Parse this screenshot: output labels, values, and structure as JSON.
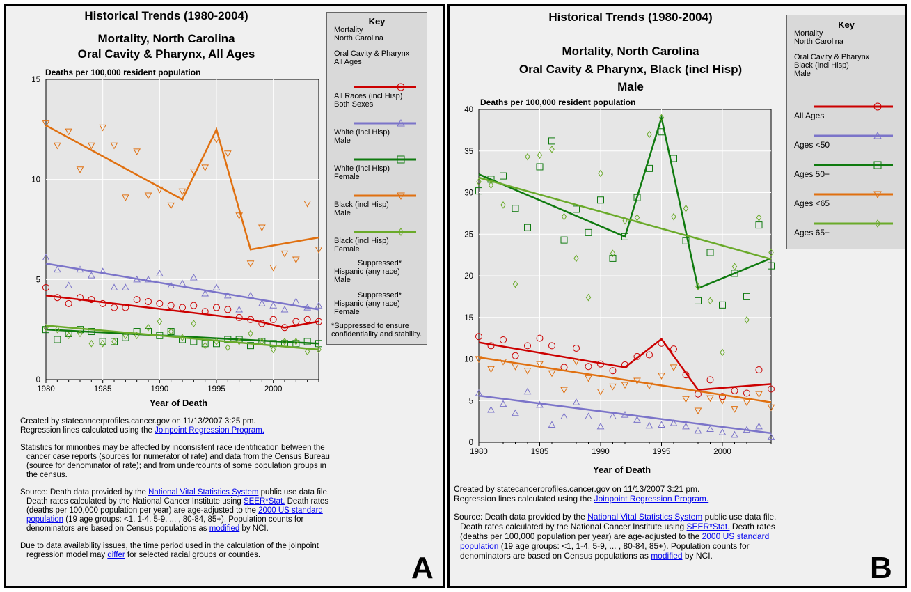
{
  "panel_a": {
    "title": "Historical Trends (1980-2004)",
    "subtitle1": "Mortality, North Carolina",
    "subtitle2": "Oral Cavity & Pharynx, All Ages",
    "ylabel": "Deaths per 100,000 resident population",
    "xlabel": "Year of Death",
    "key": {
      "title": "Key",
      "header1": "Mortality",
      "header2": "North Carolina",
      "header3": "Oral Cavity & Pharynx",
      "header4": "All Ages",
      "items": [
        {
          "l1": "All Races (incl Hisp)",
          "l2": "Both Sexes",
          "color": "#cc0000",
          "marker": "circle"
        },
        {
          "l1": "White (incl Hisp)",
          "l2": "Male",
          "color": "#7b74c9",
          "marker": "triangle-up"
        },
        {
          "l1": "White (incl Hisp)",
          "l2": "Female",
          "color": "#0f7a0f",
          "marker": "square"
        },
        {
          "l1": "Black (incl Hisp)",
          "l2": "Male",
          "color": "#e07010",
          "marker": "triangle-down"
        },
        {
          "l1": "Black (incl Hisp)",
          "l2": "Female",
          "color": "#6aaa2a",
          "marker": "diamond"
        }
      ],
      "suppressed": [
        {
          "l0": "Suppressed*",
          "l1": "Hispanic (any race)",
          "l2": "Male"
        },
        {
          "l0": "Suppressed*",
          "l1": "Hispanic (any race)",
          "l2": "Female"
        }
      ],
      "footnote": "*Suppressed to ensure confidentiality and stability."
    },
    "created": "Created by statecancerprofiles.cancer.gov on 11/13/2007 3:25 pm.",
    "regression_pre": "Regression lines calculated using the ",
    "regression_link": "Joinpoint Regression Program.",
    "minorities": "Statistics for minorities may be affected by inconsistent race identification between the cancer case reports (sources for numerator of rate) and data from the Census Bureau (source for denominator of rate); and from undercounts of some population groups in the census.",
    "source": {
      "s1": "Source: Death data provided by the ",
      "l1": "National Vital Statistics System",
      "s2": " public use data file. Death rates calculated by the National Cancer Institute using ",
      "l2": "SEER*Stat.",
      "s3": " Death rates (deaths per 100,000 population per year) are age-adjusted to the ",
      "l3": "2000 US standard population",
      "s4": " (19 age groups: <1, 1-4, 5-9, ... , 80-84, 85+). Population counts for denominators are based on Census populations as ",
      "l4": "modified",
      "s5": " by NCI."
    },
    "availability_pre": "Due to data availability issues, the time period used in the calculation of the joinpoint regression model may ",
    "availability_link": "differ",
    "availability_post": " for selected racial groups or counties.",
    "panel_letter": "A"
  },
  "panel_b": {
    "title": "Historical Trends (1980-2004)",
    "subtitle1": "Mortality, North Carolina",
    "subtitle2": "Oral Cavity & Pharynx, Black (incl Hisp)",
    "subtitle3": "Male",
    "ylabel": "Deaths per 100,000 resident population",
    "xlabel": "Year of Death",
    "key": {
      "title": "Key",
      "header1": "Mortality",
      "header2": "North Carolina",
      "header3": "Oral Cavity & Pharynx",
      "header4": "Black (incl Hisp)",
      "header5": "Male",
      "items": [
        {
          "label": "All Ages",
          "color": "#cc0000",
          "marker": "circle"
        },
        {
          "label": "Ages <50",
          "color": "#7b74c9",
          "marker": "triangle-up"
        },
        {
          "label": "Ages 50+",
          "color": "#0f7a0f",
          "marker": "square"
        },
        {
          "label": "Ages <65",
          "color": "#e07010",
          "marker": "triangle-down"
        },
        {
          "label": "Ages 65+",
          "color": "#6aaa2a",
          "marker": "diamond"
        }
      ]
    },
    "created": "Created by statecancerprofiles.cancer.gov on 11/13/2007 3:21 pm.",
    "regression_pre": "Regression lines calculated using the ",
    "regression_link": "Joinpoint Regression Program.",
    "source": {
      "s1": "Source: Death data provided by the ",
      "l1": "National Vital Statistics System",
      "s2": " public use data file. Death rates calculated by the National Cancer Institute using ",
      "l2": "SEER*Stat.",
      "s3": " Death rates (deaths per 100,000 population per year) are age-adjusted to the ",
      "l3": "2000 US standard population",
      "s4": " (19 age groups: <1, 1-4, 5-9, ... , 80-84, 85+). Population counts for denominators are based on Census populations as ",
      "l4": "modified",
      "s5": " by NCI."
    },
    "panel_letter": "B"
  },
  "chart_data": [
    {
      "type": "scatter",
      "title": "Mortality, North Carolina — Oral Cavity & Pharynx, All Ages",
      "xlabel": "Year of Death",
      "ylabel": "Deaths per 100,000 resident population",
      "xlim": [
        1980,
        2004
      ],
      "ylim": [
        0,
        15
      ],
      "xticks": [
        1980,
        1985,
        1990,
        1995,
        2000
      ],
      "yticks": [
        0,
        5,
        10,
        15
      ],
      "grid": true,
      "x": [
        1980,
        1981,
        1982,
        1983,
        1984,
        1985,
        1986,
        1987,
        1988,
        1989,
        1990,
        1991,
        1992,
        1993,
        1994,
        1995,
        1996,
        1997,
        1998,
        1999,
        2000,
        2001,
        2002,
        2003,
        2004
      ],
      "series": [
        {
          "name": "All Races (incl Hisp) Both Sexes",
          "color": "#cc0000",
          "marker": "circle",
          "values": [
            4.6,
            4.1,
            3.8,
            4.1,
            4.0,
            3.8,
            3.6,
            3.6,
            4.0,
            3.9,
            3.8,
            3.7,
            3.6,
            3.7,
            3.4,
            3.6,
            3.5,
            3.1,
            3.0,
            2.8,
            3.0,
            2.6,
            2.9,
            3.0,
            2.9
          ],
          "trend": [
            [
              1980,
              4.2
            ],
            [
              1998,
              3.0
            ],
            [
              2001,
              2.6
            ],
            [
              2004,
              2.9
            ]
          ]
        },
        {
          "name": "White (incl Hisp) Male",
          "color": "#7b74c9",
          "marker": "triangle-up",
          "values": [
            6.1,
            5.5,
            4.7,
            5.5,
            5.2,
            5.4,
            4.6,
            4.6,
            5.0,
            5.0,
            5.3,
            4.7,
            4.8,
            5.1,
            4.3,
            4.6,
            4.2,
            3.5,
            4.2,
            3.8,
            3.7,
            3.5,
            3.9,
            3.6,
            3.7
          ],
          "trend": [
            [
              1980,
              5.8
            ],
            [
              2004,
              3.5
            ]
          ]
        },
        {
          "name": "White (incl Hisp) Female",
          "color": "#0f7a0f",
          "marker": "square",
          "values": [
            2.5,
            2.0,
            2.3,
            2.5,
            2.4,
            1.9,
            1.9,
            2.1,
            2.4,
            2.4,
            2.2,
            2.4,
            2.0,
            1.9,
            1.8,
            1.8,
            2.0,
            2.0,
            1.7,
            1.9,
            1.8,
            1.8,
            1.8,
            1.9,
            1.8
          ],
          "trend": [
            [
              1980,
              2.5
            ],
            [
              2004,
              1.8
            ]
          ]
        },
        {
          "name": "Black (incl Hisp) Male",
          "color": "#e07010",
          "marker": "triangle-down",
          "values": [
            12.8,
            11.7,
            12.4,
            10.5,
            11.7,
            12.6,
            11.7,
            9.1,
            11.4,
            9.2,
            9.5,
            8.7,
            9.4,
            10.4,
            10.6,
            12.0,
            11.3,
            8.2,
            5.8,
            7.6,
            5.6,
            6.3,
            6.0,
            8.8,
            6.5
          ],
          "trend": [
            [
              1980,
              12.7
            ],
            [
              1992,
              9.0
            ],
            [
              1995,
              12.5
            ],
            [
              1998,
              6.5
            ],
            [
              2004,
              7.1
            ]
          ]
        },
        {
          "name": "Black (incl Hisp) Female",
          "color": "#6aaa2a",
          "marker": "diamond",
          "values": [
            2.6,
            2.5,
            2.2,
            2.3,
            1.8,
            1.8,
            1.9,
            2.2,
            2.2,
            2.6,
            2.9,
            2.4,
            2.1,
            2.8,
            1.7,
            1.9,
            1.6,
            1.9,
            2.3,
            1.9,
            1.5,
            1.9,
            1.9,
            1.4,
            1.5
          ],
          "trend": [
            [
              1980,
              2.7
            ],
            [
              2004,
              1.5
            ]
          ]
        }
      ]
    },
    {
      "type": "scatter",
      "title": "Mortality, North Carolina — Oral Cavity & Pharynx, Black (incl Hisp) Male",
      "xlabel": "Year of Death",
      "ylabel": "Deaths per 100,000 resident population",
      "xlim": [
        1980,
        2004
      ],
      "ylim": [
        0,
        40
      ],
      "xticks": [
        1980,
        1985,
        1990,
        1995,
        2000
      ],
      "yticks": [
        0,
        5,
        10,
        15,
        20,
        25,
        30,
        35,
        40
      ],
      "grid": true,
      "x": [
        1980,
        1981,
        1982,
        1983,
        1984,
        1985,
        1986,
        1987,
        1988,
        1989,
        1990,
        1991,
        1992,
        1993,
        1994,
        1995,
        1996,
        1997,
        1998,
        1999,
        2000,
        2001,
        2002,
        2003,
        2004
      ],
      "series": [
        {
          "name": "All Ages",
          "color": "#cc0000",
          "marker": "circle",
          "values": [
            12.7,
            11.6,
            12.3,
            10.4,
            11.6,
            12.5,
            11.6,
            9.0,
            11.3,
            9.1,
            9.4,
            8.6,
            9.3,
            10.3,
            10.5,
            11.9,
            11.2,
            8.1,
            5.8,
            7.5,
            5.5,
            6.2,
            5.9,
            8.7,
            6.4
          ],
          "trend": [
            [
              1980,
              12.0
            ],
            [
              1992,
              9.0
            ],
            [
              1995,
              12.4
            ],
            [
              1998,
              6.3
            ],
            [
              2004,
              7.0
            ]
          ]
        },
        {
          "name": "Ages <50",
          "color": "#7b74c9",
          "marker": "triangle-up",
          "values": [
            5.9,
            3.9,
            4.6,
            3.5,
            6.1,
            4.5,
            2.1,
            3.1,
            4.8,
            3.1,
            1.9,
            3.1,
            3.3,
            2.7,
            2.0,
            2.1,
            2.3,
            1.9,
            1.4,
            1.6,
            1.2,
            0.9,
            1.5,
            1.9,
            0.6
          ],
          "trend": [
            [
              1980,
              5.6
            ],
            [
              2004,
              1.1
            ]
          ]
        },
        {
          "name": "Ages 50+",
          "color": "#0f7a0f",
          "marker": "square",
          "values": [
            30.2,
            31.6,
            32.0,
            28.1,
            25.8,
            33.1,
            36.2,
            24.3,
            28.0,
            25.2,
            29.1,
            22.1,
            24.7,
            29.4,
            32.9,
            37.3,
            34.1,
            24.2,
            17.0,
            22.8,
            16.5,
            20.3,
            17.5,
            26.1,
            21.2
          ],
          "trend": [
            [
              1980,
              32.2
            ],
            [
              1992,
              24.7
            ],
            [
              1995,
              39.0
            ],
            [
              1998,
              18.5
            ],
            [
              2004,
              22.1
            ]
          ]
        },
        {
          "name": "Ages <65",
          "color": "#e07010",
          "marker": "triangle-down",
          "values": [
            10.0,
            8.8,
            9.7,
            9.1,
            8.6,
            9.4,
            8.3,
            6.3,
            9.7,
            7.7,
            6.1,
            6.7,
            6.9,
            7.4,
            6.8,
            8.0,
            9.0,
            5.2,
            3.8,
            5.3,
            5.0,
            4.0,
            4.8,
            5.8,
            4.2
          ],
          "trend": [
            [
              1980,
              10.2
            ],
            [
              2004,
              4.8
            ]
          ]
        },
        {
          "name": "Ages 65+",
          "color": "#6aaa2a",
          "marker": "diamond",
          "values": [
            31.3,
            30.9,
            28.5,
            19.0,
            34.3,
            34.5,
            35.2,
            27.1,
            22.1,
            17.4,
            32.3,
            22.7,
            26.6,
            27.0,
            37.0,
            39.0,
            27.1,
            28.1,
            18.7,
            17.0,
            10.8,
            21.1,
            14.7,
            27.0,
            22.8
          ],
          "trend": [
            [
              1980,
              31.8
            ],
            [
              2004,
              22.0
            ]
          ]
        }
      ]
    }
  ]
}
